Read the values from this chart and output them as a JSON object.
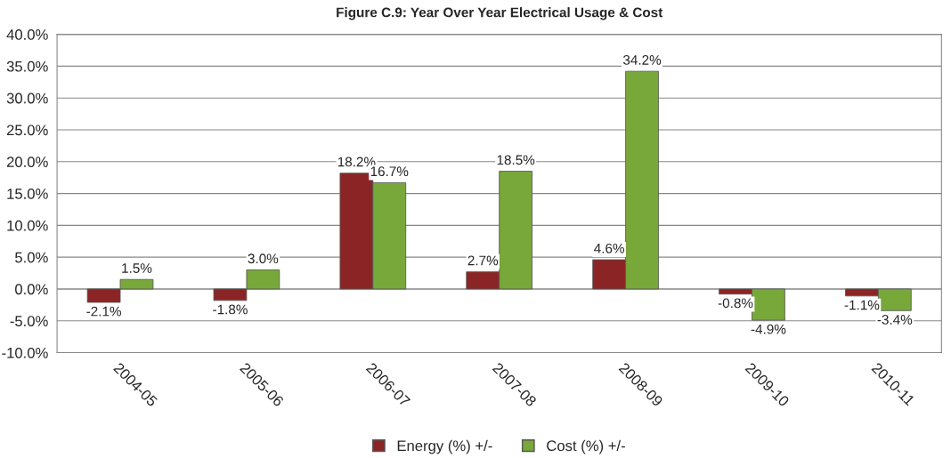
{
  "chart_data": {
    "type": "bar",
    "title": "Figure C.9: Year Over Year Electrical Usage & Cost",
    "categories": [
      "2004-05",
      "2005-06",
      "2006-07",
      "2007-08",
      "2008-09",
      "2009-10",
      "2010-11"
    ],
    "series": [
      {
        "name": "Energy (%) +/-",
        "color": "#8b2525",
        "values": [
          -2.1,
          -1.8,
          18.2,
          2.7,
          4.6,
          -0.8,
          -1.1
        ],
        "value_labels": [
          "-2.1%",
          "-1.8%",
          "18.2%",
          "2.7%",
          "4.6%",
          "-0.8%",
          "-1.1%"
        ]
      },
      {
        "name": "Cost (%) +/-",
        "color": "#79a83a",
        "values": [
          1.5,
          3.0,
          16.7,
          18.5,
          34.2,
          -4.9,
          -3.4
        ],
        "value_labels": [
          "1.5%",
          "3.0%",
          "16.7%",
          "18.5%",
          "34.2%",
          "-4.9%",
          "-3.4%"
        ]
      }
    ],
    "ylim": [
      -10,
      40
    ],
    "yticks": [
      {
        "value": -10,
        "label": "-10.0%"
      },
      {
        "value": -5,
        "label": "-5.0%"
      },
      {
        "value": 0,
        "label": "0.0%"
      },
      {
        "value": 5,
        "label": "5.0%"
      },
      {
        "value": 10,
        "label": "10.0%"
      },
      {
        "value": 15,
        "label": "15.0%"
      },
      {
        "value": 20,
        "label": "20.0%"
      },
      {
        "value": 25,
        "label": "25.0%"
      },
      {
        "value": 30,
        "label": "30.0%"
      },
      {
        "value": 35,
        "label": "35.0%"
      },
      {
        "value": 40,
        "label": "40.0%"
      }
    ],
    "grid": "y",
    "legend": "bottom"
  }
}
